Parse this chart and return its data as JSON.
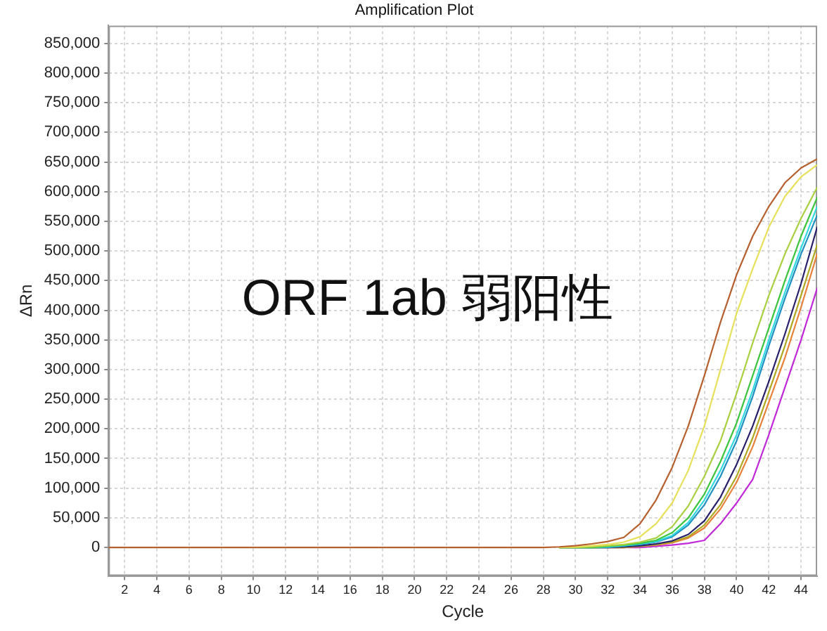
{
  "chart_data": {
    "type": "line",
    "title": "Amplification Plot",
    "xlabel": "Cycle",
    "ylabel": "ΔRn",
    "annotations": [
      "ORF 1ab 弱阳性"
    ],
    "grid": true,
    "x": [
      1,
      2,
      3,
      4,
      5,
      6,
      7,
      8,
      9,
      10,
      11,
      12,
      13,
      14,
      15,
      16,
      17,
      18,
      19,
      20,
      21,
      22,
      23,
      24,
      25,
      26,
      27,
      28,
      29,
      30,
      31,
      32,
      33,
      34,
      35,
      36,
      37,
      38,
      39,
      40,
      41,
      42,
      43,
      44,
      45
    ],
    "xlim": [
      1,
      45
    ],
    "xticks": [
      2,
      4,
      6,
      8,
      10,
      12,
      14,
      16,
      18,
      20,
      22,
      24,
      26,
      28,
      30,
      32,
      34,
      36,
      38,
      40,
      42,
      44
    ],
    "ylim": [
      -48000,
      880000
    ],
    "yticks": [
      {
        "value": 0,
        "label": "0"
      },
      {
        "value": 50000,
        "label": "50,000"
      },
      {
        "value": 100000,
        "label": "100,000"
      },
      {
        "value": 150000,
        "label": "150,000"
      },
      {
        "value": 200000,
        "label": "200,000"
      },
      {
        "value": 250000,
        "label": "250,000"
      },
      {
        "value": 300000,
        "label": "300,000"
      },
      {
        "value": 350000,
        "label": "350,000"
      },
      {
        "value": 400000,
        "label": "400,000"
      },
      {
        "value": 450000,
        "label": "450,000"
      },
      {
        "value": 500000,
        "label": "500,000"
      },
      {
        "value": 550000,
        "label": "550,000"
      },
      {
        "value": 600000,
        "label": "600,000"
      },
      {
        "value": 650000,
        "label": "650,000"
      },
      {
        "value": 700000,
        "label": "700,000"
      },
      {
        "value": 750000,
        "label": "750,000"
      },
      {
        "value": 800000,
        "label": "800,000"
      },
      {
        "value": 850000,
        "label": "850,000"
      }
    ],
    "series": [
      {
        "color": "#b5602e",
        "values": [
          0,
          0,
          0,
          0,
          0,
          0,
          0,
          0,
          0,
          0,
          0,
          0,
          0,
          0,
          0,
          0,
          0,
          0,
          0,
          0,
          0,
          0,
          0,
          0,
          0,
          0,
          0,
          0,
          1000,
          3000,
          6000,
          10000,
          17000,
          40000,
          80000,
          135000,
          205000,
          290000,
          380000,
          460000,
          525000,
          575000,
          615000,
          640000,
          655000
        ]
      },
      {
        "color": "#e6e05a",
        "values": [
          null,
          null,
          null,
          null,
          null,
          null,
          null,
          null,
          null,
          null,
          null,
          null,
          null,
          null,
          null,
          null,
          null,
          null,
          null,
          null,
          null,
          null,
          null,
          null,
          null,
          null,
          null,
          null,
          0,
          1000,
          3000,
          5000,
          9000,
          18000,
          40000,
          75000,
          130000,
          205000,
          300000,
          395000,
          470000,
          540000,
          592000,
          625000,
          645000
        ]
      },
      {
        "color": "#a8d040",
        "values": [
          null,
          null,
          null,
          null,
          null,
          null,
          null,
          null,
          null,
          null,
          null,
          null,
          null,
          null,
          null,
          null,
          null,
          null,
          null,
          null,
          null,
          null,
          null,
          null,
          null,
          null,
          null,
          null,
          0,
          0,
          1000,
          3000,
          5000,
          9000,
          16000,
          35000,
          70000,
          120000,
          180000,
          260000,
          345000,
          425000,
          495000,
          555000,
          607000
        ]
      },
      {
        "color": "#3cc43c",
        "values": [
          null,
          null,
          null,
          null,
          null,
          null,
          null,
          null,
          null,
          null,
          null,
          null,
          null,
          null,
          null,
          null,
          null,
          null,
          null,
          null,
          null,
          null,
          null,
          null,
          null,
          null,
          null,
          null,
          0,
          0,
          0,
          2000,
          4000,
          7000,
          12000,
          25000,
          50000,
          90000,
          145000,
          210000,
          290000,
          370000,
          450000,
          525000,
          590000
        ]
      },
      {
        "color": "#30d8e0",
        "values": [
          null,
          null,
          null,
          null,
          null,
          null,
          null,
          null,
          null,
          null,
          null,
          null,
          null,
          null,
          null,
          null,
          null,
          null,
          null,
          null,
          null,
          null,
          null,
          null,
          null,
          null,
          null,
          null,
          0,
          0,
          0,
          1000,
          3000,
          6000,
          10000,
          20000,
          42000,
          80000,
          130000,
          190000,
          265000,
          350000,
          430000,
          505000,
          575000
        ]
      },
      {
        "color": "#2090c0",
        "values": [
          null,
          null,
          null,
          null,
          null,
          null,
          null,
          null,
          null,
          null,
          null,
          null,
          null,
          null,
          null,
          null,
          null,
          null,
          null,
          null,
          null,
          null,
          null,
          null,
          null,
          null,
          null,
          null,
          0,
          0,
          0,
          0,
          3000,
          5000,
          9000,
          18000,
          38000,
          72000,
          120000,
          180000,
          255000,
          340000,
          420000,
          495000,
          560000
        ]
      },
      {
        "color": "#28206a",
        "values": [
          null,
          null,
          null,
          null,
          null,
          null,
          null,
          null,
          null,
          null,
          null,
          null,
          null,
          null,
          null,
          null,
          null,
          null,
          null,
          null,
          null,
          null,
          null,
          null,
          null,
          null,
          null,
          null,
          0,
          0,
          0,
          0,
          1000,
          3000,
          6000,
          11000,
          22000,
          45000,
          85000,
          140000,
          205000,
          280000,
          360000,
          445000,
          540000
        ]
      },
      {
        "color": "#b0a820",
        "values": [
          null,
          null,
          null,
          null,
          null,
          null,
          null,
          null,
          null,
          null,
          null,
          null,
          null,
          null,
          null,
          null,
          null,
          null,
          null,
          null,
          null,
          null,
          null,
          null,
          null,
          null,
          null,
          null,
          0,
          0,
          0,
          0,
          0,
          2000,
          5000,
          9000,
          18000,
          38000,
          72000,
          120000,
          185000,
          262000,
          340000,
          425000,
          510000
        ]
      },
      {
        "color": "#e8803a",
        "values": [
          null,
          null,
          null,
          null,
          null,
          null,
          null,
          null,
          null,
          null,
          null,
          null,
          null,
          null,
          null,
          null,
          null,
          null,
          null,
          null,
          null,
          null,
          null,
          null,
          null,
          null,
          null,
          null,
          0,
          0,
          0,
          0,
          0,
          2000,
          4000,
          8000,
          16000,
          33000,
          65000,
          110000,
          170000,
          245000,
          320000,
          405000,
          495000
        ]
      },
      {
        "color": "#c028d8",
        "values": [
          null,
          null,
          null,
          null,
          null,
          null,
          null,
          null,
          null,
          null,
          null,
          null,
          null,
          null,
          null,
          null,
          null,
          null,
          null,
          null,
          null,
          null,
          null,
          null,
          null,
          null,
          null,
          null,
          null,
          null,
          null,
          0,
          0,
          0,
          2000,
          4000,
          7000,
          12000,
          40000,
          75000,
          115000,
          190000,
          270000,
          350000,
          437000
        ]
      }
    ]
  }
}
